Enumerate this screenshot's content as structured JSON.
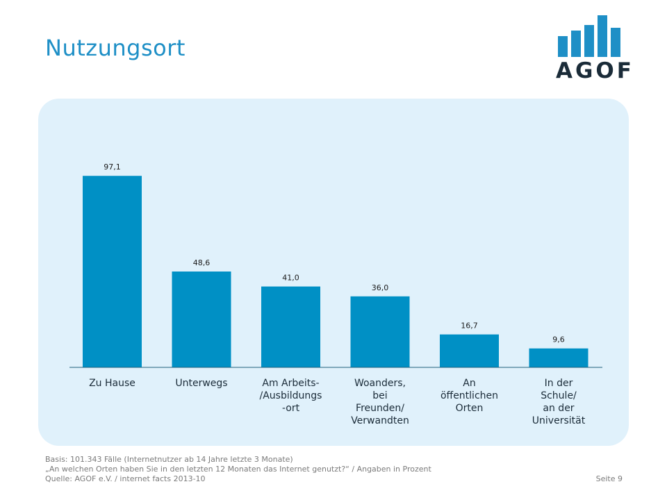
{
  "title": "Nutzungsort",
  "logo": {
    "text": "AGOF",
    "bar_color": "#1e8fc6",
    "text_color": "#1a2b38"
  },
  "colors": {
    "bar": "#0090c5",
    "panel": "#e0f1fb",
    "axis": "#1e5f7a",
    "accent": "#1e8fc6"
  },
  "chart_data": {
    "type": "bar",
    "categories": [
      [
        "Zu Hause"
      ],
      [
        "Unterwegs"
      ],
      [
        "Am Arbeits-",
        "/Ausbildungs",
        "-ort"
      ],
      [
        "Woanders,",
        "bei",
        "Freunden/",
        "Verwandten"
      ],
      [
        "An",
        "öffentlichen",
        "Orten"
      ],
      [
        "In der",
        "Schule/",
        "an der",
        "Universität"
      ]
    ],
    "values": [
      97.1,
      48.6,
      41.0,
      36.0,
      16.7,
      9.6
    ],
    "value_labels": [
      "97,1",
      "48,6",
      "41,0",
      "36,0",
      "16,7",
      "9,6"
    ],
    "ylim": [
      0,
      100
    ],
    "title": "",
    "xlabel": "",
    "ylabel": "",
    "grid": false,
    "legend": "none"
  },
  "footer": {
    "basis": "Basis: 101.343 Fälle (Internetnutzer ab 14 Jahre letzte 3 Monate)",
    "question": "„An welchen Orten haben Sie in den letzten 12 Monaten das Internet genutzt?“ / Angaben in Prozent",
    "source": "Quelle: AGOF e.V. / internet facts 2013-10"
  },
  "page": "Seite 9"
}
